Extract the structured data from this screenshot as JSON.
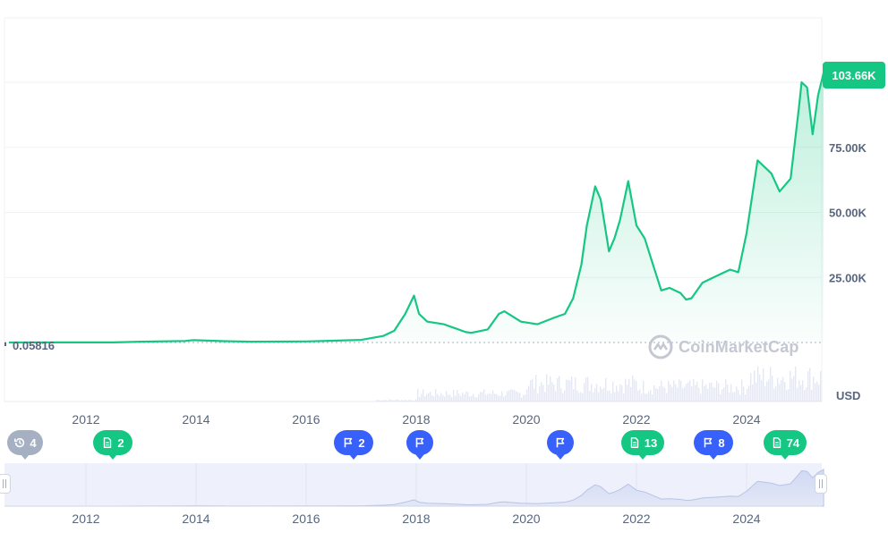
{
  "colors": {
    "line": "#16c784",
    "grid": "#eff2f5",
    "axis_text": "#58667e",
    "marker_green": "#16c784",
    "marker_blue": "#3861fb",
    "marker_gray": "#a6b0c3",
    "navigator_bg": "#eef1fb"
  },
  "chart_data": {
    "type": "area",
    "title": "",
    "xlabel": "",
    "ylabel": "USD",
    "start_value_label": "0.05816",
    "current_value_label": "103.66K",
    "current_value": 103660,
    "ylim": [
      0,
      125000
    ],
    "y_ticks": [
      25000,
      50000,
      75000
    ],
    "y_tick_labels": [
      "25.00K",
      "50.00K",
      "75.00K"
    ],
    "x_ticks": [
      2012,
      2014,
      2016,
      2018,
      2020,
      2022,
      2024
    ],
    "x_tick_labels": [
      "2012",
      "2014",
      "2016",
      "2018",
      "2020",
      "2022",
      "2024"
    ],
    "xlim": [
      2010.6,
      2025.4
    ],
    "grid": true,
    "series": [
      {
        "x": [
          2010.6,
          2011.5,
          2012.5,
          2013.0,
          2013.8,
          2013.95,
          2014.5,
          2015.0,
          2016.0,
          2016.5,
          2017.0,
          2017.4,
          2017.6,
          2017.8,
          2017.96,
          2018.05,
          2018.2,
          2018.5,
          2018.9,
          2019.0,
          2019.3,
          2019.5,
          2019.6,
          2019.9,
          2020.2,
          2020.5,
          2020.7,
          2020.85,
          2021.0,
          2021.1,
          2021.25,
          2021.35,
          2021.5,
          2021.6,
          2021.7,
          2021.85,
          2022.0,
          2022.15,
          2022.3,
          2022.45,
          2022.6,
          2022.8,
          2022.9,
          2023.0,
          2023.2,
          2023.5,
          2023.7,
          2023.85,
          2024.0,
          2024.2,
          2024.45,
          2024.6,
          2024.8,
          2024.95,
          2025.0,
          2025.1,
          2025.2,
          2025.3,
          2025.4
        ],
        "y": [
          0.06,
          50,
          50,
          300,
          600,
          900,
          500,
          300,
          400,
          700,
          1000,
          2500,
          4500,
          11000,
          18000,
          11000,
          8000,
          7000,
          4000,
          3700,
          5000,
          11000,
          12000,
          8000,
          7000,
          9500,
          11000,
          17000,
          30000,
          45000,
          60000,
          55000,
          35000,
          40000,
          47000,
          62000,
          45000,
          40000,
          30000,
          20000,
          21000,
          19000,
          16500,
          17000,
          23000,
          26000,
          28000,
          27000,
          42000,
          70000,
          65000,
          58000,
          63000,
          90000,
          100000,
          98000,
          80000,
          95000,
          103660
        ]
      }
    ],
    "volume_style": "faint bars rising after 2017"
  },
  "event_markers": [
    {
      "icon": "history-icon",
      "count": "4",
      "color": "gray"
    },
    {
      "icon": "document-icon",
      "count": "2",
      "color": "green"
    },
    {
      "icon": "flag-icon",
      "count": "2",
      "color": "blue"
    },
    {
      "icon": "flag-icon",
      "count": "",
      "color": "blue"
    },
    {
      "icon": "flag-icon",
      "count": "",
      "color": "blue"
    },
    {
      "icon": "document-icon",
      "count": "13",
      "color": "green"
    },
    {
      "icon": "flag-icon",
      "count": "8",
      "color": "blue"
    },
    {
      "icon": "document-icon",
      "count": "74",
      "color": "green"
    }
  ],
  "watermark": "CoinMarketCap"
}
